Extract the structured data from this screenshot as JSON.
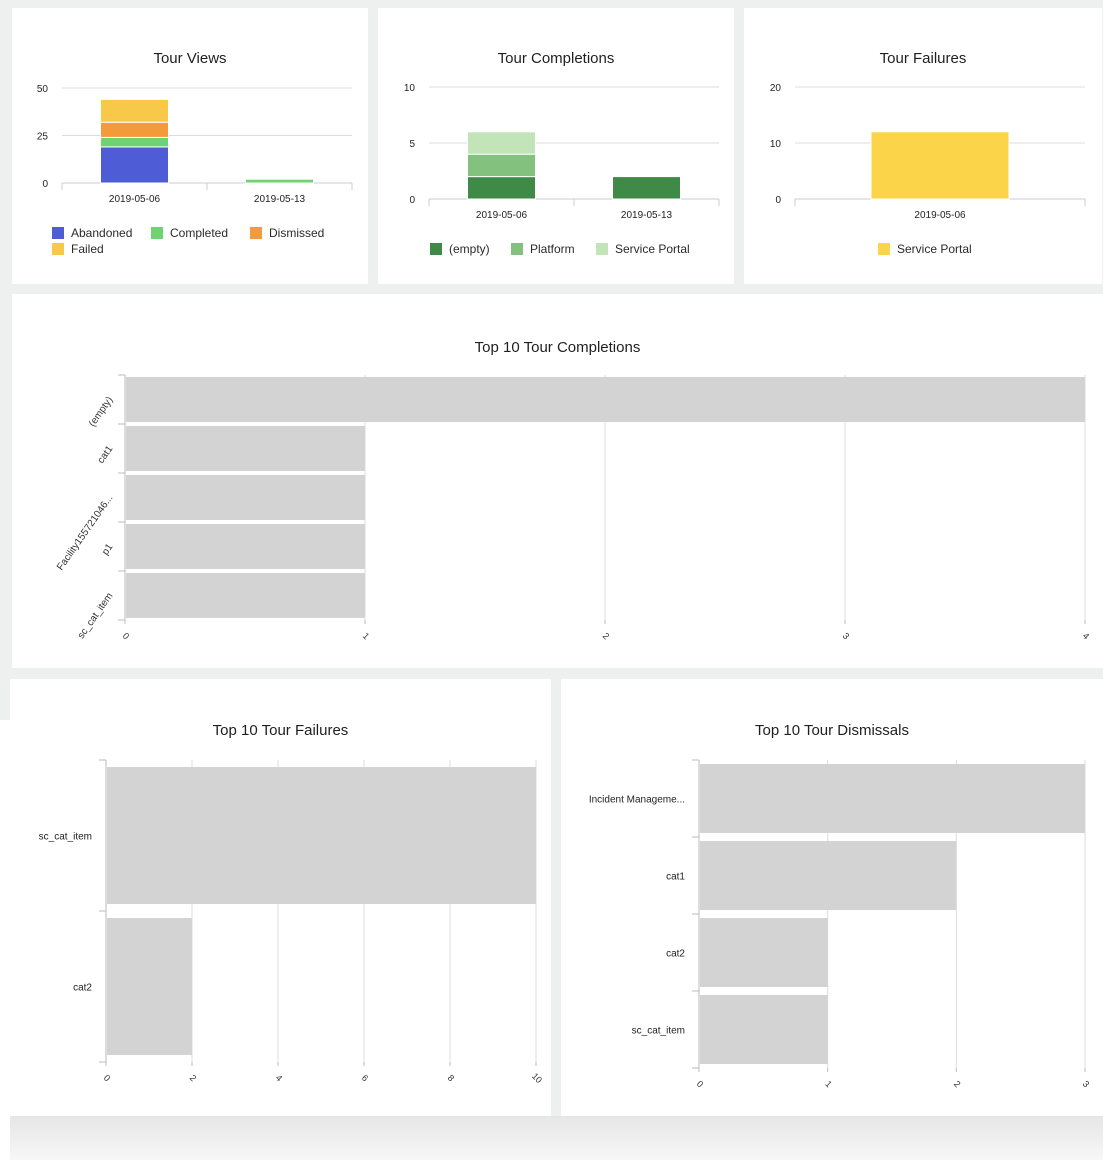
{
  "colors": {
    "abandoned": "#4e5dd6",
    "completed": "#6fd46f",
    "dismissed": "#f39a3d",
    "failed": "#f8c848",
    "empty": "#3f8a47",
    "platform": "#82c27e",
    "service_portal_green": "#c2e4b8",
    "service_portal_yellow": "#fbd44a",
    "hbar": "#d3d3d3",
    "grid": "#dcdcdc"
  },
  "chart_data": [
    {
      "id": "tour_views",
      "type": "bar",
      "stacked": true,
      "title": "Tour Views",
      "categories": [
        "2019-05-06",
        "2019-05-13"
      ],
      "series": [
        {
          "name": "Abandoned",
          "color": "#4e5dd6",
          "values": [
            19,
            0
          ]
        },
        {
          "name": "Completed",
          "color": "#6fd46f",
          "values": [
            5,
            2
          ]
        },
        {
          "name": "Dismissed",
          "color": "#f39a3d",
          "values": [
            8,
            0
          ]
        },
        {
          "name": "Failed",
          "color": "#f8c848",
          "values": [
            12,
            0
          ]
        }
      ],
      "yticks": [
        0,
        25,
        50
      ],
      "ylim": [
        0,
        50
      ],
      "grid": true,
      "legend_position": "bottom"
    },
    {
      "id": "tour_completions",
      "type": "bar",
      "stacked": true,
      "title": "Tour Completions",
      "categories": [
        "2019-05-06",
        "2019-05-13"
      ],
      "series": [
        {
          "name": "(empty)",
          "color": "#3f8a47",
          "values": [
            2,
            2
          ]
        },
        {
          "name": "Platform",
          "color": "#82c27e",
          "values": [
            2,
            0
          ]
        },
        {
          "name": "Service Portal",
          "color": "#c2e4b8",
          "values": [
            2,
            0
          ]
        }
      ],
      "yticks": [
        0,
        5,
        10
      ],
      "ylim": [
        0,
        10
      ],
      "grid": true,
      "legend_position": "bottom"
    },
    {
      "id": "tour_failures",
      "type": "bar",
      "stacked": true,
      "title": "Tour Failures",
      "categories": [
        "2019-05-06"
      ],
      "series": [
        {
          "name": "Service Portal",
          "color": "#fbd44a",
          "values": [
            12
          ]
        }
      ],
      "yticks": [
        0,
        10,
        20
      ],
      "ylim": [
        0,
        20
      ],
      "grid": true,
      "legend_position": "bottom"
    },
    {
      "id": "top10_completions",
      "type": "bar",
      "orientation": "horizontal",
      "title": "Top 10 Tour Completions",
      "categories": [
        "(empty)",
        "cat1",
        "Facility155721046...",
        "p1",
        "sc_cat_item"
      ],
      "values": [
        4,
        1,
        1,
        1,
        1
      ],
      "xticks": [
        0,
        1,
        2,
        3,
        4
      ],
      "xlim": [
        0,
        4
      ],
      "grid": true
    },
    {
      "id": "top10_failures",
      "type": "bar",
      "orientation": "horizontal",
      "title": "Top 10 Tour Failures",
      "categories": [
        "sc_cat_item",
        "cat2"
      ],
      "values": [
        10,
        2
      ],
      "xticks": [
        0,
        2,
        4,
        6,
        8,
        10
      ],
      "xlim": [
        0,
        10
      ],
      "grid": true
    },
    {
      "id": "top10_dismissals",
      "type": "bar",
      "orientation": "horizontal",
      "title": "Top 10 Tour Dismissals",
      "categories": [
        "Incident Manageme...",
        "cat1",
        "cat2",
        "sc_cat_item"
      ],
      "values": [
        3,
        2,
        1,
        1
      ],
      "xticks": [
        0,
        1,
        2,
        3
      ],
      "xlim": [
        0,
        3
      ],
      "grid": true
    }
  ]
}
